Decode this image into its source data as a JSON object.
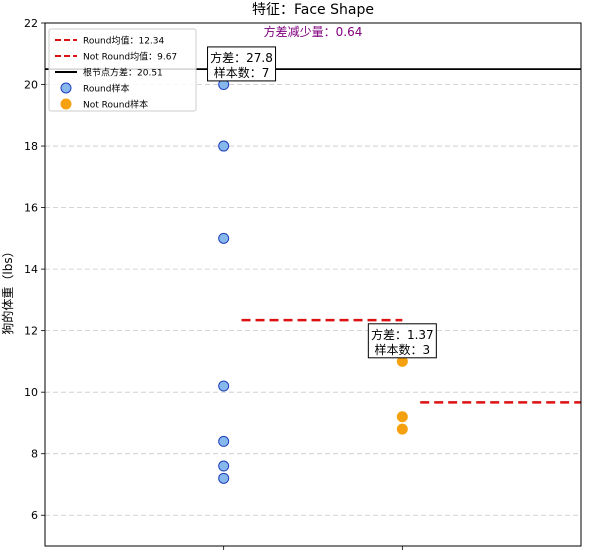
{
  "chart_data": {
    "type": "scatter",
    "title": "特征：Face Shape",
    "subtitle": "方差减少量：0.64",
    "ylabel": "狗的体重（lbs）",
    "xlabel": "",
    "ylim": [
      5,
      22
    ],
    "yticks": [
      6,
      8,
      10,
      12,
      14,
      16,
      18,
      20,
      22
    ],
    "xlim": [
      0,
      3
    ],
    "xticks": [
      1,
      2
    ],
    "grid": "horizontal dashed",
    "legend_position": "top-left",
    "series": [
      {
        "name": "Round样本",
        "x": 1,
        "values": [
          20.0,
          18.0,
          15.0,
          10.2,
          8.4,
          7.6,
          7.2
        ],
        "color": "#87b8ec",
        "edge": "#1f3fbf"
      },
      {
        "name": "Not Round样本",
        "x": 2,
        "values": [
          11.0,
          9.2,
          8.8
        ],
        "color": "#f5a10f",
        "edge": "#f5a10f"
      }
    ],
    "lines": [
      {
        "name": "Round均值：12.34",
        "kind": "mean",
        "y": 12.34,
        "x_range": [
          1.1,
          2.0
        ],
        "color": "#dd1111",
        "style": "dashed"
      },
      {
        "name": "Not Round均值：9.67",
        "kind": "mean",
        "y": 9.67,
        "x_range": [
          2.1,
          3.0
        ],
        "color": "#dd1111",
        "style": "dashed"
      },
      {
        "name": "根节点方差：20.51",
        "kind": "root",
        "y": 20.5,
        "x_range": [
          0,
          3
        ],
        "color": "#000000",
        "style": "solid"
      }
    ],
    "annotations": [
      {
        "group": "Round",
        "lines": [
          "方差：27.8",
          "样本数：7"
        ],
        "x": 1.1,
        "y": 20.8
      },
      {
        "group": "Not Round",
        "lines": [
          "方差：1.37",
          "样本数：3"
        ],
        "x": 2.0,
        "y": 11.8
      }
    ]
  }
}
